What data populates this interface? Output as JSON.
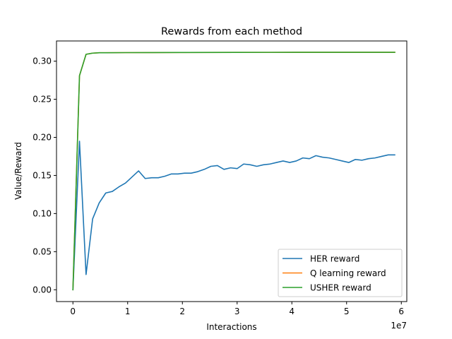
{
  "chart_data": {
    "type": "line",
    "title": "Rewards from each method",
    "xlabel": "Interactions",
    "ylabel": "Value/Reward",
    "x_offset_label": "1e7",
    "xlim": [
      -3000000,
      61000000
    ],
    "ylim": [
      -0.0155,
      0.3265
    ],
    "x_ticks": [
      0,
      10000000,
      20000000,
      30000000,
      40000000,
      50000000,
      60000000
    ],
    "x_tick_labels": [
      "0",
      "1",
      "2",
      "3",
      "4",
      "5",
      "6"
    ],
    "y_ticks": [
      0.0,
      0.05,
      0.1,
      0.15,
      0.2,
      0.25,
      0.3
    ],
    "y_tick_labels": [
      "0.00",
      "0.05",
      "0.10",
      "0.15",
      "0.20",
      "0.25",
      "0.30"
    ],
    "grid": false,
    "legend_position": "lower-right",
    "series": [
      {
        "name": "HER reward",
        "color": "#1f77b4",
        "x": [
          0,
          1200000,
          2400000,
          3600000,
          4800000,
          6000000,
          7200000,
          8400000,
          9600000,
          10800000,
          12000000,
          13200000,
          14400000,
          15600000,
          16800000,
          18000000,
          19200000,
          20400000,
          21600000,
          22800000,
          24000000,
          25200000,
          26400000,
          27600000,
          28800000,
          30000000,
          31200000,
          32400000,
          33600000,
          34800000,
          36000000,
          37200000,
          38400000,
          39600000,
          40800000,
          42000000,
          43200000,
          44400000,
          45600000,
          46800000,
          48000000,
          49200000,
          50400000,
          51600000,
          52800000,
          54000000,
          55200000,
          56400000,
          57600000,
          58800000
        ],
        "values": [
          0.0,
          0.195,
          0.02,
          0.093,
          0.114,
          0.127,
          0.129,
          0.135,
          0.14,
          0.148,
          0.156,
          0.146,
          0.147,
          0.147,
          0.149,
          0.152,
          0.152,
          0.153,
          0.153,
          0.155,
          0.158,
          0.162,
          0.163,
          0.158,
          0.16,
          0.159,
          0.165,
          0.164,
          0.162,
          0.164,
          0.165,
          0.167,
          0.169,
          0.167,
          0.169,
          0.173,
          0.172,
          0.176,
          0.174,
          0.173,
          0.171,
          0.169,
          0.167,
          0.171,
          0.17,
          0.172,
          0.173,
          0.175,
          0.177,
          0.177
        ]
      },
      {
        "name": "Q learning reward",
        "color": "#ff7f0e",
        "x": [
          0,
          1200000,
          2400000,
          3600000,
          4800000,
          6000000,
          9600000,
          14400000,
          20400000,
          30000000,
          40800000,
          50400000,
          58800000
        ],
        "values": [
          0.0,
          0.281,
          0.309,
          0.3105,
          0.311,
          0.311,
          0.3112,
          0.3113,
          0.3114,
          0.3115,
          0.3116,
          0.3116,
          0.3116
        ]
      },
      {
        "name": "USHER reward",
        "color": "#2ca02c",
        "x": [
          0,
          1200000,
          2400000,
          3600000,
          4800000,
          6000000,
          9600000,
          14400000,
          20400000,
          30000000,
          40800000,
          50400000,
          58800000
        ],
        "values": [
          0.0,
          0.281,
          0.309,
          0.3105,
          0.311,
          0.311,
          0.3112,
          0.3113,
          0.3114,
          0.3115,
          0.3116,
          0.3116,
          0.3116
        ]
      }
    ]
  }
}
